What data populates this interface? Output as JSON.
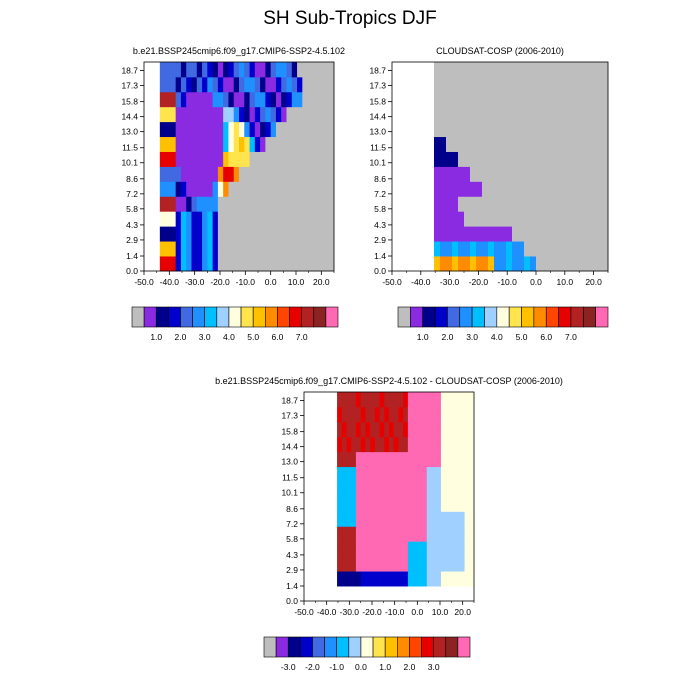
{
  "figure": {
    "title": "SH Sub-Tropics DJF"
  },
  "colors": {
    "missing": "#BEBEBE",
    "abs_palette": [
      "#BEBEBE",
      "#8A2BE2",
      "#00008B",
      "#0000CD",
      "#4169E1",
      "#1E90FF",
      "#00BFFF",
      "#A0D0FF",
      "#FFFFE0",
      "#FFE44D",
      "#FFC000",
      "#FF8C00",
      "#FF4500",
      "#E60000",
      "#B22222",
      "#8B2323",
      "#FF69B4"
    ],
    "diff_palette": [
      "#BEBEBE",
      "#8A2BE2",
      "#00008B",
      "#0000CD",
      "#4169E1",
      "#1E90FF",
      "#00BFFF",
      "#A0D0FF",
      "#FFFFE0",
      "#FFE44D",
      "#FFC000",
      "#FF8C00",
      "#FF4500",
      "#E60000",
      "#B22222",
      "#8B2323",
      "#FF69B4"
    ]
  },
  "chart_data": [
    {
      "id": "model",
      "type": "heatmap",
      "title": "b.e21.BSSP245cmip6.f09_g17.CMIP6-SSP2-4.5.102",
      "x_ticks": [
        "-50.0",
        "-40.0",
        "-30.0",
        "-20.0",
        "-10.0",
        "0.0",
        "10.0",
        "20.0"
      ],
      "y_ticks": [
        "0.0",
        "1.4",
        "2.9",
        "4.3",
        "5.8",
        "7.2",
        "8.6",
        "10.1",
        "11.5",
        "13.0",
        "14.4",
        "15.8",
        "17.3",
        "18.7"
      ],
      "colorbar_labels": [
        "1.0",
        "2.0",
        "3.0",
        "4.0",
        "5.0",
        "6.0",
        "7.0"
      ],
      "legend_placement": "bottom"
    },
    {
      "id": "obs",
      "type": "heatmap",
      "title": "CLOUDSAT-COSP (2006-2010)",
      "x_ticks": [
        "-50.0",
        "-40.0",
        "-30.0",
        "-20.0",
        "-10.0",
        "0.0",
        "10.0",
        "20.0"
      ],
      "y_ticks": [
        "0.0",
        "1.4",
        "2.9",
        "4.3",
        "5.8",
        "7.2",
        "8.6",
        "10.1",
        "11.5",
        "13.0",
        "14.4",
        "15.8",
        "17.3",
        "18.7"
      ],
      "colorbar_labels": [
        "1.0",
        "2.0",
        "3.0",
        "4.0",
        "5.0",
        "6.0",
        "7.0"
      ],
      "legend_placement": "bottom"
    },
    {
      "id": "diff",
      "type": "heatmap",
      "title": "b.e21.BSSP245cmip6.f09_g17.CMIP6-SSP2-4.5.102 - CLOUDSAT-COSP (2006-2010)",
      "x_ticks": [
        "-50.0",
        "-40.0",
        "-30.0",
        "-20.0",
        "-10.0",
        "0.0",
        "10.0",
        "20.0"
      ],
      "y_ticks": [
        "0.0",
        "1.4",
        "2.9",
        "4.3",
        "5.8",
        "7.2",
        "8.6",
        "10.1",
        "11.5",
        "13.0",
        "14.4",
        "15.8",
        "17.3",
        "18.7"
      ],
      "colorbar_labels": [
        "-3.0",
        "-2.0",
        "-1.0",
        "0.0",
        "1.0",
        "2.0",
        "3.0"
      ],
      "legend_placement": "bottom"
    }
  ]
}
